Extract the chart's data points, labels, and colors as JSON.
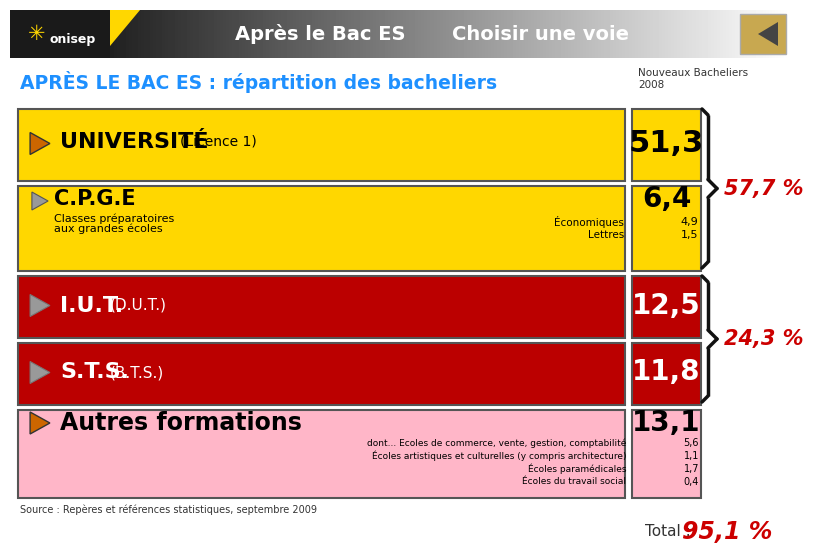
{
  "header_text1": "Après le Bac ES",
  "header_text2": "Choisir une voie",
  "title": "APRÈS LE BAC ES : répartition des bacheliers",
  "subtitle1": "Nouveaux Bacheliers",
  "subtitle2": "2008",
  "rows": [
    {
      "label_main": "UNIVERSITÉ",
      "label_sub": "(Licence 1)",
      "value": "51,3",
      "bg_color": "#FFD700",
      "text_color": "#000000",
      "extra_labels": [],
      "extra_values": [],
      "arrow_fill": "#CC6600",
      "label_main_size": 16,
      "label_sub_size": 10
    },
    {
      "label_main": "C.P.G.E",
      "label_sub": "Classes préparatoires\naux grandes écoles",
      "value": "6,4",
      "bg_color": "#FFD700",
      "text_color": "#000000",
      "extra_labels": [
        "Économiques",
        "Lettres"
      ],
      "extra_values": [
        "4,9",
        "1,5"
      ],
      "arrow_fill": "#999999",
      "label_main_size": 15,
      "label_sub_size": 8
    },
    {
      "label_main": "I.U.T.",
      "label_sub": "(D.U.T.)",
      "value": "12,5",
      "bg_color": "#BB0000",
      "text_color": "#FFFFFF",
      "extra_labels": [],
      "extra_values": [],
      "arrow_fill": "#999999",
      "label_main_size": 16,
      "label_sub_size": 11
    },
    {
      "label_main": "S.T.S.",
      "label_sub": "(B.T.S.)",
      "value": "11,8",
      "bg_color": "#BB0000",
      "text_color": "#FFFFFF",
      "extra_labels": [],
      "extra_values": [],
      "arrow_fill": "#999999",
      "label_main_size": 16,
      "label_sub_size": 11
    },
    {
      "label_main": "Autres formations",
      "label_sub": "",
      "value": "13,1",
      "bg_color": "#FFB6C8",
      "text_color": "#000000",
      "extra_labels": [
        "dont... Ecoles de commerce, vente, gestion, comptabilité",
        "Écoles artistiques et culturelles (y compris architecture)",
        "Écoles paramédicales",
        "Écoles du travail social"
      ],
      "extra_values": [
        "5,6",
        "1,1",
        "1,7",
        "0,4"
      ],
      "arrow_fill": "#CC6600",
      "label_main_size": 17,
      "label_sub_size": 8
    }
  ],
  "brace1_label": "57,7 %",
  "brace2_label": "24,3 %",
  "source": "Source : Repères et références statistiques, septembre 2009",
  "red_color": "#CC0000",
  "total_text": "Total : ",
  "total_value": "95,1 %"
}
